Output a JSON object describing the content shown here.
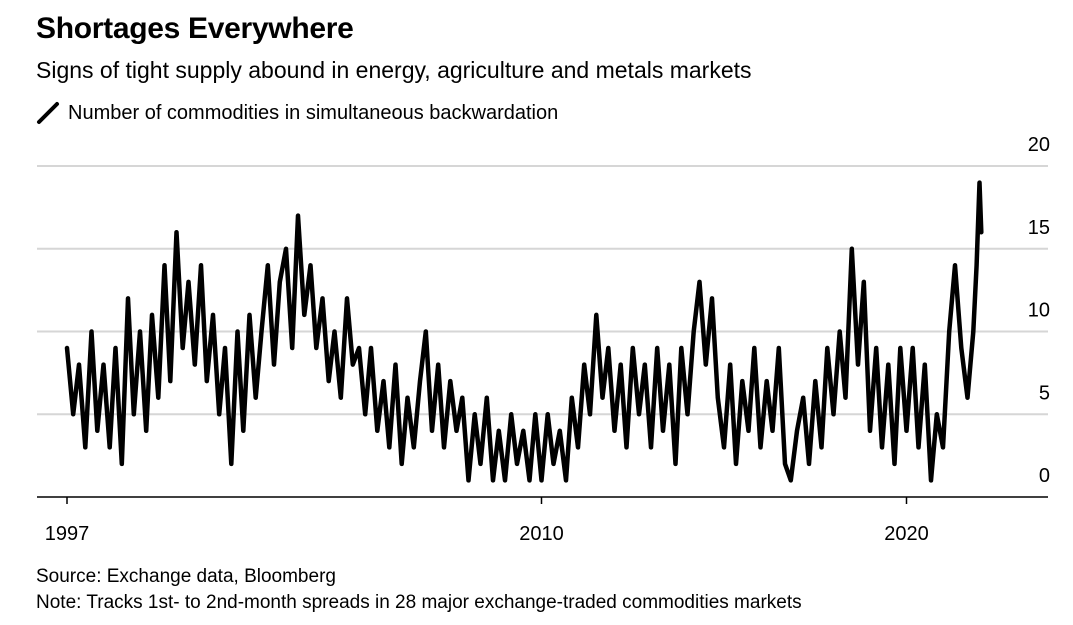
{
  "header": {
    "title": "Shortages Everywhere",
    "subtitle": "Signs of tight supply abound in energy, agriculture and metals markets"
  },
  "footer": {
    "source": "Source: Exchange data, Bloomberg",
    "note": "Note: Tracks 1st- to 2nd-month spreads in 28 major exchange-traded commodities markets"
  },
  "chart_data": {
    "type": "line",
    "title": "Shortages Everywhere",
    "subtitle": "Signs of tight supply abound in energy, agriculture and metals markets",
    "series": [
      {
        "name": "Number of commodities in simultaneous backwardation",
        "color": "#000000",
        "points": [
          [
            1997.0,
            9
          ],
          [
            1997.17,
            5
          ],
          [
            1997.33,
            8
          ],
          [
            1997.5,
            3
          ],
          [
            1997.67,
            10
          ],
          [
            1997.83,
            4
          ],
          [
            1998.0,
            8
          ],
          [
            1998.17,
            3
          ],
          [
            1998.33,
            9
          ],
          [
            1998.5,
            2
          ],
          [
            1998.67,
            12
          ],
          [
            1998.83,
            5
          ],
          [
            1999.0,
            10
          ],
          [
            1999.17,
            4
          ],
          [
            1999.33,
            11
          ],
          [
            1999.5,
            6
          ],
          [
            1999.67,
            14
          ],
          [
            1999.83,
            7
          ],
          [
            2000.0,
            16
          ],
          [
            2000.17,
            9
          ],
          [
            2000.33,
            13
          ],
          [
            2000.5,
            8
          ],
          [
            2000.67,
            14
          ],
          [
            2000.83,
            7
          ],
          [
            2001.0,
            11
          ],
          [
            2001.17,
            5
          ],
          [
            2001.33,
            9
          ],
          [
            2001.5,
            2
          ],
          [
            2001.67,
            10
          ],
          [
            2001.83,
            4
          ],
          [
            2002.0,
            11
          ],
          [
            2002.17,
            6
          ],
          [
            2002.33,
            10
          ],
          [
            2002.5,
            14
          ],
          [
            2002.67,
            8
          ],
          [
            2002.83,
            13
          ],
          [
            2003.0,
            15
          ],
          [
            2003.17,
            9
          ],
          [
            2003.33,
            17
          ],
          [
            2003.5,
            11
          ],
          [
            2003.67,
            14
          ],
          [
            2003.83,
            9
          ],
          [
            2004.0,
            12
          ],
          [
            2004.17,
            7
          ],
          [
            2004.33,
            10
          ],
          [
            2004.5,
            6
          ],
          [
            2004.67,
            12
          ],
          [
            2004.83,
            8
          ],
          [
            2005.0,
            9
          ],
          [
            2005.17,
            5
          ],
          [
            2005.33,
            9
          ],
          [
            2005.5,
            4
          ],
          [
            2005.67,
            7
          ],
          [
            2005.83,
            3
          ],
          [
            2006.0,
            8
          ],
          [
            2006.17,
            2
          ],
          [
            2006.33,
            6
          ],
          [
            2006.5,
            3
          ],
          [
            2006.67,
            7
          ],
          [
            2006.83,
            10
          ],
          [
            2007.0,
            4
          ],
          [
            2007.17,
            8
          ],
          [
            2007.33,
            3
          ],
          [
            2007.5,
            7
          ],
          [
            2007.67,
            4
          ],
          [
            2007.83,
            6
          ],
          [
            2008.0,
            1
          ],
          [
            2008.17,
            5
          ],
          [
            2008.33,
            2
          ],
          [
            2008.5,
            6
          ],
          [
            2008.67,
            1
          ],
          [
            2008.83,
            4
          ],
          [
            2009.0,
            1
          ],
          [
            2009.17,
            5
          ],
          [
            2009.33,
            2
          ],
          [
            2009.5,
            4
          ],
          [
            2009.67,
            1
          ],
          [
            2009.83,
            5
          ],
          [
            2010.0,
            1
          ],
          [
            2010.17,
            5
          ],
          [
            2010.33,
            2
          ],
          [
            2010.5,
            4
          ],
          [
            2010.67,
            1
          ],
          [
            2010.83,
            6
          ],
          [
            2011.0,
            3
          ],
          [
            2011.17,
            8
          ],
          [
            2011.33,
            5
          ],
          [
            2011.5,
            11
          ],
          [
            2011.67,
            6
          ],
          [
            2011.83,
            9
          ],
          [
            2012.0,
            4
          ],
          [
            2012.17,
            8
          ],
          [
            2012.33,
            3
          ],
          [
            2012.5,
            9
          ],
          [
            2012.67,
            5
          ],
          [
            2012.83,
            8
          ],
          [
            2013.0,
            3
          ],
          [
            2013.17,
            9
          ],
          [
            2013.33,
            4
          ],
          [
            2013.5,
            8
          ],
          [
            2013.67,
            2
          ],
          [
            2013.83,
            9
          ],
          [
            2014.0,
            5
          ],
          [
            2014.17,
            10
          ],
          [
            2014.33,
            13
          ],
          [
            2014.5,
            8
          ],
          [
            2014.67,
            12
          ],
          [
            2014.83,
            6
          ],
          [
            2015.0,
            3
          ],
          [
            2015.17,
            8
          ],
          [
            2015.33,
            2
          ],
          [
            2015.5,
            7
          ],
          [
            2015.67,
            4
          ],
          [
            2015.83,
            9
          ],
          [
            2016.0,
            3
          ],
          [
            2016.17,
            7
          ],
          [
            2016.33,
            4
          ],
          [
            2016.5,
            9
          ],
          [
            2016.67,
            2
          ],
          [
            2016.83,
            1
          ],
          [
            2017.0,
            4
          ],
          [
            2017.17,
            6
          ],
          [
            2017.33,
            2
          ],
          [
            2017.5,
            7
          ],
          [
            2017.67,
            3
          ],
          [
            2017.83,
            9
          ],
          [
            2018.0,
            5
          ],
          [
            2018.17,
            10
          ],
          [
            2018.33,
            6
          ],
          [
            2018.5,
            15
          ],
          [
            2018.67,
            8
          ],
          [
            2018.83,
            13
          ],
          [
            2019.0,
            4
          ],
          [
            2019.17,
            9
          ],
          [
            2019.33,
            3
          ],
          [
            2019.5,
            8
          ],
          [
            2019.67,
            2
          ],
          [
            2019.83,
            9
          ],
          [
            2020.0,
            4
          ],
          [
            2020.17,
            9
          ],
          [
            2020.33,
            3
          ],
          [
            2020.5,
            8
          ],
          [
            2020.67,
            1
          ],
          [
            2020.83,
            5
          ],
          [
            2021.0,
            3
          ],
          [
            2021.17,
            10
          ],
          [
            2021.33,
            14
          ],
          [
            2021.5,
            9
          ],
          [
            2021.67,
            6
          ],
          [
            2021.83,
            10
          ],
          [
            2021.92,
            14
          ],
          [
            2022.0,
            19
          ],
          [
            2022.05,
            16
          ]
        ]
      }
    ],
    "xlabel": "",
    "ylabel": "",
    "x_ticks": [
      1997,
      2010,
      2020
    ],
    "x_tick_labels": [
      "1997",
      "2010",
      "2020"
    ],
    "y_ticks": [
      0,
      5,
      10,
      15,
      20
    ],
    "y_tick_labels": [
      "0",
      "5",
      "10",
      "15",
      "20"
    ],
    "ylim": [
      0,
      20
    ],
    "xlim": [
      1997,
      2022.2
    ],
    "grid": "horizontal",
    "y_axis_position": "right",
    "legend_position": "top-left"
  }
}
